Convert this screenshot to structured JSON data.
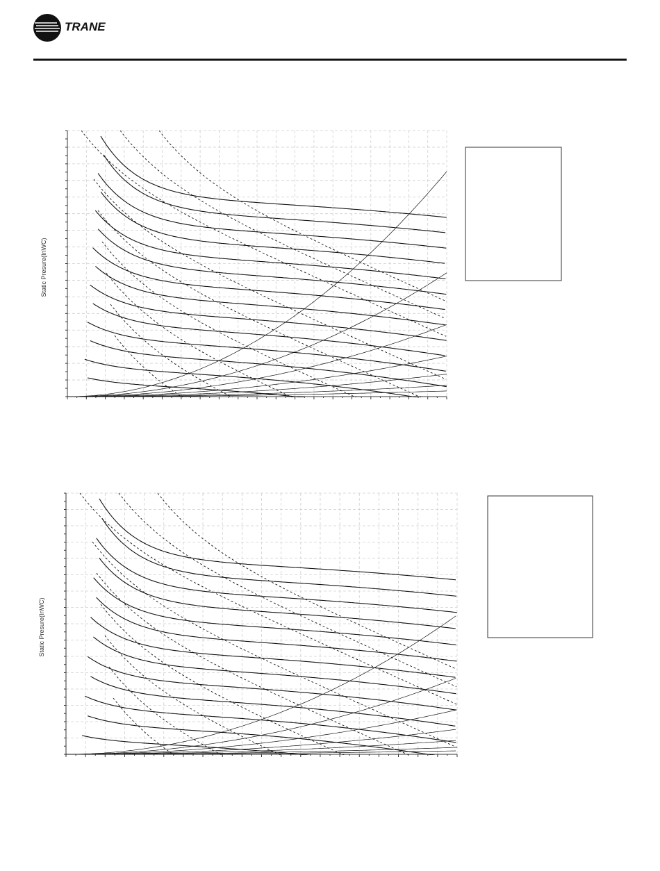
{
  "header": {
    "logo_text": "TRANE"
  },
  "charts": [
    {
      "y_axis_label": "Static Presure(InWC)"
    },
    {
      "y_axis_label": "Static Presure(InWC)"
    }
  ]
}
